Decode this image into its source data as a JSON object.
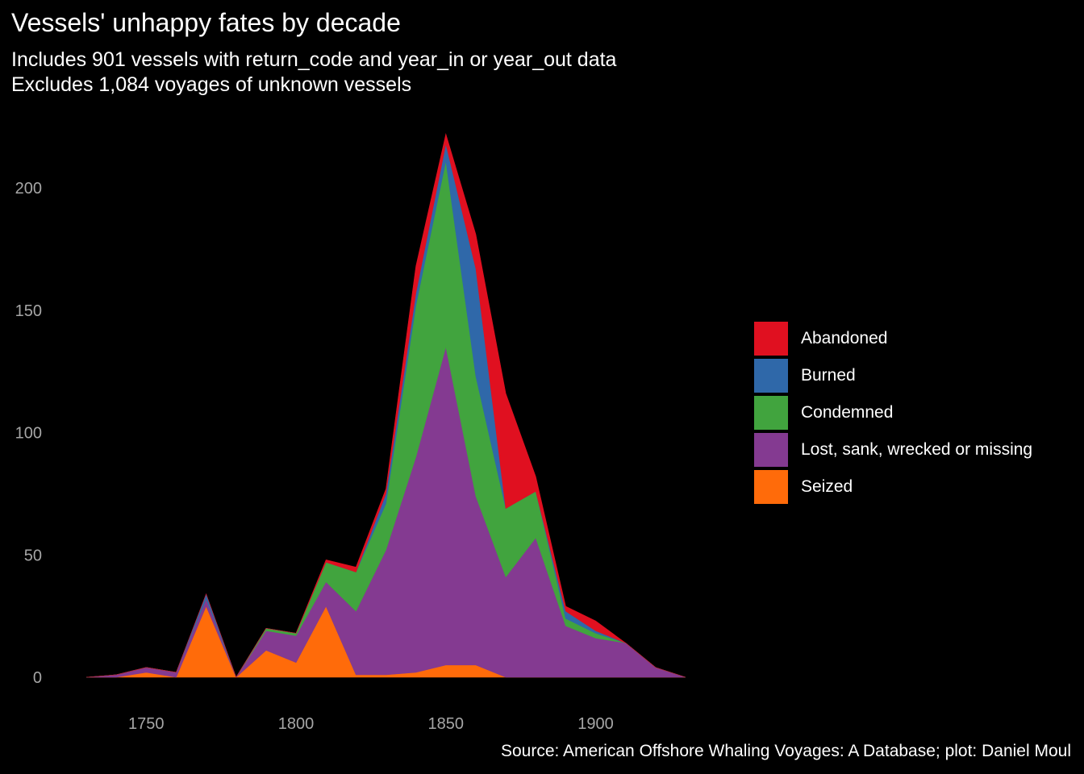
{
  "title": "Vessels' unhappy fates by decade",
  "subtitle_line1": "Includes 901 vessels with return_code and year_in or year_out data",
  "subtitle_line2": "Excludes 1,084 voyages of unknown vessels",
  "caption": "Source: American Offshore Whaling Voyages: A Database; plot: Daniel Moul",
  "chart_data": {
    "type": "area",
    "stacked": true,
    "x": [
      1730,
      1740,
      1750,
      1760,
      1770,
      1780,
      1790,
      1800,
      1810,
      1820,
      1830,
      1840,
      1850,
      1860,
      1870,
      1880,
      1890,
      1900,
      1910,
      1920,
      1930
    ],
    "series": [
      {
        "name": "Seized",
        "color": "#ff6b0a",
        "values": [
          0,
          0,
          2,
          0,
          29,
          0,
          11,
          6,
          29,
          1,
          1,
          2,
          5,
          5,
          0,
          0,
          0,
          0,
          0,
          0,
          0
        ]
      },
      {
        "name": "Lost, sank, wrecked or missing",
        "color": "#843a91",
        "values": [
          0,
          1,
          2,
          2,
          3,
          0,
          8,
          11,
          10,
          26,
          51,
          88,
          130,
          69,
          41,
          57,
          21,
          16,
          14,
          4,
          0
        ]
      },
      {
        "name": "Condemned",
        "color": "#41a43e",
        "values": [
          0,
          0,
          0,
          0,
          0,
          0,
          1,
          1,
          8,
          16,
          19,
          62,
          76,
          49,
          28,
          19,
          3,
          2,
          0,
          0,
          0
        ]
      },
      {
        "name": "Burned",
        "color": "#2f68a9",
        "values": [
          0,
          0,
          0,
          0,
          2,
          0,
          0,
          0,
          0,
          0,
          4,
          5,
          7,
          44,
          0,
          0,
          3,
          1,
          0,
          0,
          0
        ]
      },
      {
        "name": "Abandoned",
        "color": "#e01020",
        "values": [
          0,
          0,
          0,
          0,
          0,
          0,
          0,
          0,
          1,
          2,
          2,
          11,
          4,
          14,
          47,
          6,
          2,
          4,
          0,
          0,
          0
        ]
      }
    ],
    "xticks": [
      1750,
      1800,
      1850,
      1900
    ],
    "yticks": [
      0,
      50,
      100,
      150,
      200
    ],
    "xlim": [
      1730,
      1930
    ],
    "ylim": [
      0,
      221
    ],
    "grid": false,
    "legend_position": "right",
    "legend_order": [
      "Abandoned",
      "Burned",
      "Condemned",
      "Lost, sank, wrecked or missing",
      "Seized"
    ]
  }
}
